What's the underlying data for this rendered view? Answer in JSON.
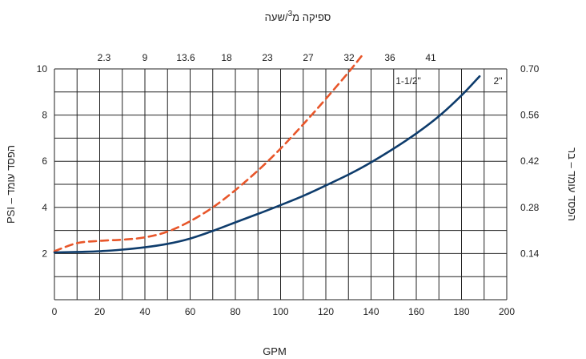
{
  "chart_data": {
    "type": "line",
    "title": "ספיקה מ3/שעה",
    "title_parts": {
      "prefix": "ספיקה מ",
      "sup": "3",
      "suffix": "/שעה"
    },
    "xlabel": "GPM",
    "ylabel_left": "PSI – הפסד עומד",
    "ylabel_right": "הפסד עומד – בר",
    "xlim": [
      0,
      200
    ],
    "ylim": [
      0,
      10
    ],
    "x_ticks": [
      "0",
      "20",
      "40",
      "60",
      "80",
      "100",
      "120",
      "140",
      "160",
      "180",
      "200"
    ],
    "y_ticks": [
      "2",
      "4",
      "6",
      "8",
      "10"
    ],
    "top_ticks": [
      "2.3",
      "9",
      "13.6",
      "18",
      "23",
      "27",
      "32",
      "36",
      "41"
    ],
    "right_ticks": [
      "0.14",
      "0.28",
      "0.42",
      "0.56",
      "0.70"
    ],
    "grid": true,
    "series": [
      {
        "name": "1-1/2\"",
        "color": "#e8562a",
        "style": "dashed",
        "x": [
          0,
          10,
          20,
          30,
          40,
          50,
          60,
          70,
          80,
          90,
          100,
          110,
          120,
          130,
          137
        ],
        "y": [
          2.1,
          2.45,
          2.55,
          2.6,
          2.7,
          2.95,
          3.4,
          4.0,
          4.75,
          5.6,
          6.55,
          7.6,
          8.7,
          9.85,
          10.7
        ]
      },
      {
        "name": "2\"",
        "color": "#0e3c6c",
        "style": "solid",
        "x": [
          0,
          10,
          20,
          30,
          40,
          50,
          60,
          70,
          80,
          90,
          100,
          110,
          120,
          130,
          140,
          150,
          160,
          170,
          180,
          188
        ],
        "y": [
          2.05,
          2.07,
          2.1,
          2.17,
          2.27,
          2.42,
          2.65,
          2.98,
          3.35,
          3.72,
          4.1,
          4.5,
          4.95,
          5.42,
          5.95,
          6.55,
          7.2,
          7.95,
          8.85,
          9.68
        ]
      }
    ]
  }
}
